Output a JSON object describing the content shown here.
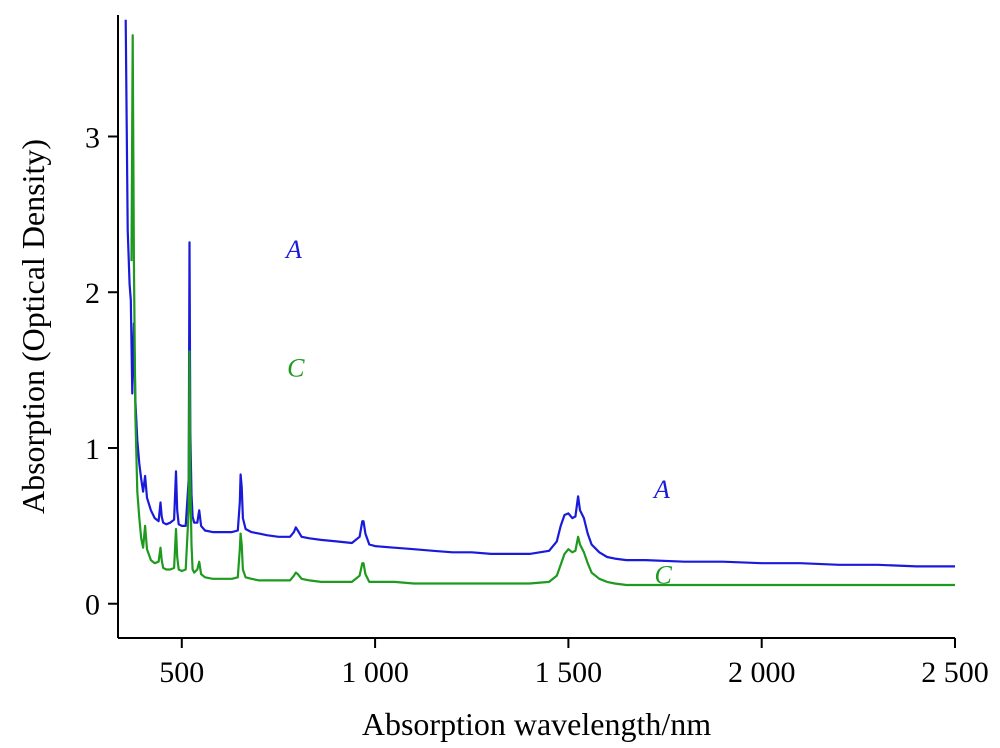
{
  "chart_data": {
    "type": "line",
    "xlabel": "Absorption wavelength/nm",
    "ylabel": "Absorption (Optical Density)",
    "xlim": [
      335,
      2500
    ],
    "ylim": [
      -0.22,
      3.78
    ],
    "x_ticks": [
      {
        "value": 500,
        "label": "500"
      },
      {
        "value": 1000,
        "label": "1 000"
      },
      {
        "value": 1500,
        "label": "1 500"
      },
      {
        "value": 2000,
        "label": "2 000"
      },
      {
        "value": 2500,
        "label": "2 500"
      }
    ],
    "y_ticks": [
      {
        "value": 0,
        "label": "0"
      },
      {
        "value": 1,
        "label": "1"
      },
      {
        "value": 2,
        "label": "2"
      },
      {
        "value": 3,
        "label": "3"
      }
    ],
    "grid": false,
    "series": [
      {
        "name": "A",
        "color": "#1a1adb",
        "label_positions": [
          {
            "x": 790,
            "y": 2.22
          },
          {
            "x": 1742,
            "y": 0.68
          }
        ],
        "x": [
          355,
          360,
          365,
          368,
          372,
          376,
          380,
          385,
          390,
          395,
          400,
          405,
          410,
          420,
          430,
          440,
          445,
          448,
          452,
          460,
          470,
          480,
          485,
          488,
          492,
          500,
          510,
          518,
          520,
          522,
          525,
          528,
          532,
          540,
          545,
          550,
          560,
          580,
          600,
          630,
          645,
          650,
          652,
          655,
          658,
          665,
          680,
          700,
          720,
          750,
          780,
          790,
          795,
          800,
          810,
          830,
          860,
          900,
          940,
          960,
          967,
          970,
          975,
          985,
          1000,
          1050,
          1100,
          1150,
          1200,
          1250,
          1300,
          1350,
          1400,
          1450,
          1470,
          1480,
          1490,
          1500,
          1510,
          1518,
          1525,
          1530,
          1540,
          1550,
          1560,
          1580,
          1600,
          1620,
          1650,
          1700,
          1800,
          1900,
          2000,
          2100,
          2200,
          2300,
          2400,
          2500
        ],
        "y": [
          3.75,
          2.4,
          2.05,
          1.95,
          1.35,
          1.8,
          1.3,
          1.05,
          0.9,
          0.8,
          0.72,
          0.82,
          0.68,
          0.6,
          0.55,
          0.53,
          0.65,
          0.56,
          0.52,
          0.51,
          0.52,
          0.54,
          0.85,
          0.6,
          0.51,
          0.5,
          0.5,
          0.8,
          2.32,
          1.1,
          0.7,
          0.56,
          0.52,
          0.52,
          0.6,
          0.5,
          0.47,
          0.46,
          0.46,
          0.46,
          0.47,
          0.65,
          0.83,
          0.75,
          0.55,
          0.48,
          0.46,
          0.45,
          0.44,
          0.43,
          0.43,
          0.46,
          0.49,
          0.47,
          0.43,
          0.42,
          0.41,
          0.4,
          0.39,
          0.43,
          0.53,
          0.53,
          0.45,
          0.38,
          0.37,
          0.36,
          0.35,
          0.34,
          0.33,
          0.33,
          0.32,
          0.32,
          0.32,
          0.34,
          0.4,
          0.5,
          0.57,
          0.58,
          0.55,
          0.56,
          0.69,
          0.6,
          0.55,
          0.45,
          0.38,
          0.33,
          0.3,
          0.29,
          0.28,
          0.28,
          0.27,
          0.27,
          0.26,
          0.26,
          0.25,
          0.25,
          0.24,
          0.24
        ]
      },
      {
        "name": "C",
        "color": "#1e9a1e",
        "label_positions": [
          {
            "x": 795,
            "y": 1.46
          },
          {
            "x": 1745,
            "y": 0.13
          }
        ],
        "x": [
          370,
          373,
          376,
          380,
          385,
          390,
          395,
          400,
          405,
          410,
          420,
          430,
          440,
          445,
          448,
          452,
          460,
          470,
          480,
          485,
          488,
          492,
          500,
          510,
          518,
          520,
          522,
          525,
          528,
          532,
          540,
          545,
          550,
          560,
          580,
          600,
          630,
          645,
          650,
          652,
          655,
          658,
          665,
          680,
          700,
          720,
          750,
          780,
          790,
          795,
          800,
          810,
          830,
          860,
          900,
          940,
          960,
          967,
          970,
          975,
          985,
          1000,
          1050,
          1100,
          1150,
          1200,
          1250,
          1300,
          1350,
          1400,
          1450,
          1470,
          1480,
          1490,
          1500,
          1510,
          1518,
          1525,
          1530,
          1540,
          1550,
          1560,
          1580,
          1600,
          1620,
          1650,
          1700,
          1800,
          1900,
          2000,
          2100,
          2200,
          2300,
          2400,
          2500
        ],
        "y": [
          2.2,
          3.65,
          2.2,
          1.2,
          0.72,
          0.55,
          0.42,
          0.36,
          0.5,
          0.35,
          0.28,
          0.26,
          0.27,
          0.36,
          0.28,
          0.23,
          0.22,
          0.22,
          0.23,
          0.48,
          0.3,
          0.22,
          0.21,
          0.22,
          0.6,
          1.62,
          0.8,
          0.38,
          0.22,
          0.2,
          0.22,
          0.27,
          0.19,
          0.17,
          0.16,
          0.16,
          0.16,
          0.17,
          0.35,
          0.45,
          0.38,
          0.22,
          0.17,
          0.16,
          0.15,
          0.15,
          0.15,
          0.15,
          0.18,
          0.2,
          0.19,
          0.16,
          0.15,
          0.14,
          0.14,
          0.14,
          0.18,
          0.26,
          0.26,
          0.19,
          0.14,
          0.14,
          0.14,
          0.13,
          0.13,
          0.13,
          0.13,
          0.13,
          0.13,
          0.13,
          0.14,
          0.18,
          0.25,
          0.32,
          0.35,
          0.33,
          0.34,
          0.43,
          0.38,
          0.33,
          0.26,
          0.2,
          0.16,
          0.14,
          0.13,
          0.12,
          0.12,
          0.12,
          0.12,
          0.12,
          0.12,
          0.12,
          0.12,
          0.12,
          0.12
        ]
      }
    ]
  }
}
